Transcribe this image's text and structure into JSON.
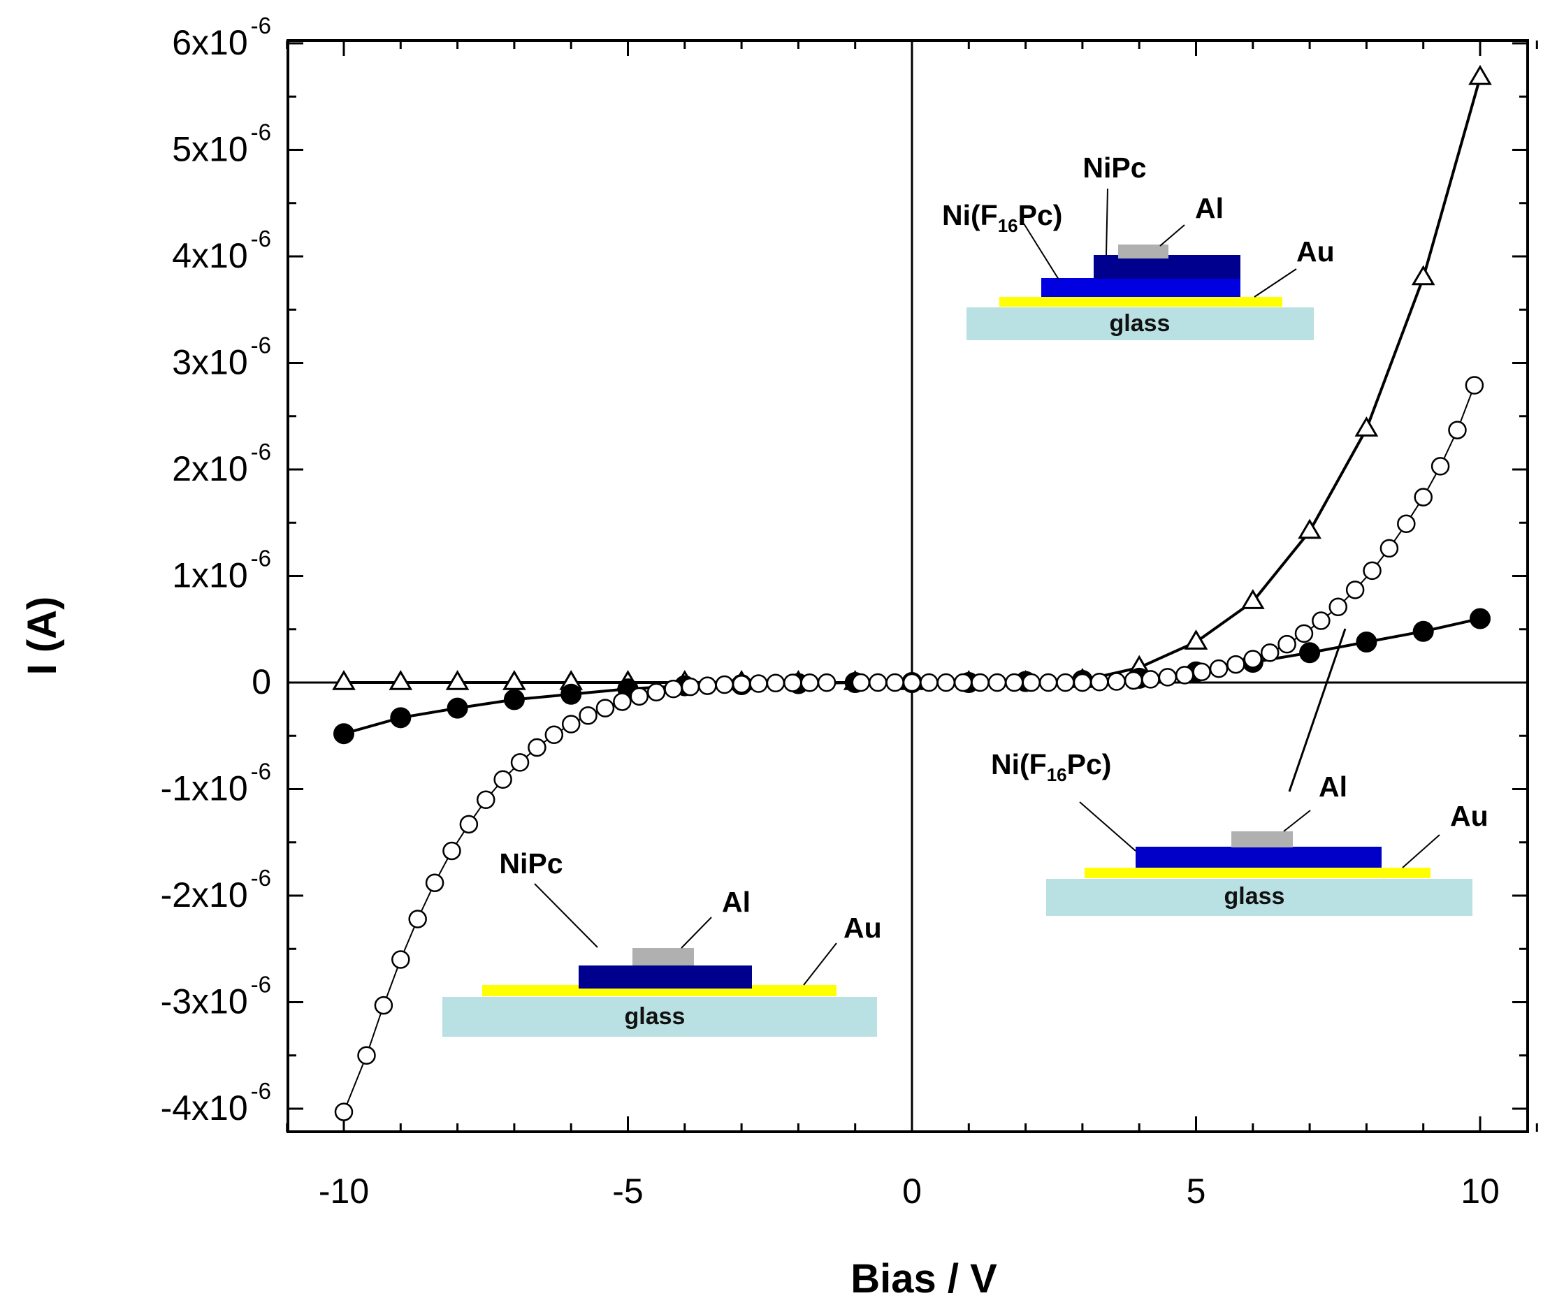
{
  "colors": {
    "glass": "#b9e0e2",
    "gold": "#ffff00",
    "aluminum": "#b0b0b0",
    "nipc": "#00008f",
    "nif16pc": "#0000e0",
    "nif16pc_dark": "#0000c8",
    "axis": "#000000"
  },
  "chart_data": {
    "type": "scatter",
    "title": "",
    "xlabel": "Bias / V",
    "ylabel": "I (A)",
    "xlim": [
      -11,
      11
    ],
    "ylim": [
      -4.2e-06,
      6e-06
    ],
    "x_ticks": [
      {
        "value": -10,
        "label": "-10"
      },
      {
        "value": -5,
        "label": "-5"
      },
      {
        "value": 0,
        "label": "0"
      },
      {
        "value": 5,
        "label": "5"
      },
      {
        "value": 10,
        "label": "10"
      }
    ],
    "y_ticks": [
      {
        "value": 6e-06,
        "mantissa": "6x10",
        "exp": "-6"
      },
      {
        "value": 5e-06,
        "mantissa": "5x10",
        "exp": "-6"
      },
      {
        "value": 4e-06,
        "mantissa": "4x10",
        "exp": "-6"
      },
      {
        "value": 3e-06,
        "mantissa": "3x10",
        "exp": "-6"
      },
      {
        "value": 2e-06,
        "mantissa": "2x10",
        "exp": "-6"
      },
      {
        "value": 1e-06,
        "mantissa": "1x10",
        "exp": "-6"
      },
      {
        "value": 0,
        "mantissa": "0",
        "exp": ""
      },
      {
        "value": -1e-06,
        "mantissa": "-1x10",
        "exp": "-6"
      },
      {
        "value": -2e-06,
        "mantissa": "-2x10",
        "exp": "-6"
      },
      {
        "value": -3e-06,
        "mantissa": "-3x10",
        "exp": "-6"
      },
      {
        "value": -4e-06,
        "mantissa": "-4x10",
        "exp": "-6"
      }
    ],
    "series": [
      {
        "name": "open-triangles",
        "marker": "triangle-open",
        "x": [
          -10,
          -9,
          -8,
          -7,
          -6,
          -5,
          -4,
          -3,
          -2,
          -1,
          0,
          1,
          2,
          3,
          4,
          5,
          6,
          7,
          8,
          9,
          10
        ],
        "y": [
          0,
          0,
          0,
          0,
          0,
          0,
          0,
          0,
          0,
          0,
          0,
          0,
          0,
          2e-08,
          1.4e-07,
          3.8e-07,
          7.6e-07,
          1.42e-06,
          2.38e-06,
          3.8e-06,
          5.68e-06
        ]
      },
      {
        "name": "filled-circles",
        "marker": "circle-filled",
        "x": [
          -10,
          -9,
          -8,
          -7,
          -6,
          -5,
          -4,
          -3,
          -2,
          -1,
          0,
          1,
          2,
          3,
          4,
          5,
          6,
          7,
          8,
          9,
          10
        ],
        "y": [
          -4.8e-07,
          -3.3e-07,
          -2.4e-07,
          -1.6e-07,
          -1.1e-07,
          -6e-08,
          -3e-08,
          -2e-08,
          -1e-08,
          0,
          0,
          0,
          1e-08,
          2e-08,
          4e-08,
          1e-07,
          1.9e-07,
          2.8e-07,
          3.8e-07,
          4.8e-07,
          6e-07
        ]
      },
      {
        "name": "open-circles",
        "marker": "circle-open",
        "x": [
          -10,
          -9.6,
          -9.3,
          -9,
          -8.7,
          -8.4,
          -8.1,
          -7.8,
          -7.5,
          -7.2,
          -6.9,
          -6.6,
          -6.3,
          -6,
          -5.7,
          -5.4,
          -5.1,
          -4.8,
          -4.5,
          -4.2,
          -3.9,
          -3.6,
          -3.3,
          -3.0,
          -2.7,
          -2.4,
          -2.1,
          -1.8,
          -1.5,
          -0.9,
          -0.6,
          -0.3,
          0,
          0.3,
          0.6,
          0.9,
          1.2,
          1.5,
          1.8,
          2.1,
          2.4,
          2.7,
          3.0,
          3.3,
          3.6,
          3.9,
          4.2,
          4.5,
          4.8,
          5.1,
          5.4,
          5.7,
          6.0,
          6.3,
          6.6,
          6.9,
          7.2,
          7.5,
          7.8,
          8.1,
          8.4,
          8.7,
          9.0,
          9.3,
          9.6,
          9.9
        ],
        "y": [
          -4.03e-06,
          -3.5e-06,
          -3.03e-06,
          -2.6e-06,
          -2.22e-06,
          -1.88e-06,
          -1.58e-06,
          -1.33e-06,
          -1.1e-06,
          -9.1e-07,
          -7.5e-07,
          -6.1e-07,
          -4.9e-07,
          -3.9e-07,
          -3.1e-07,
          -2.4e-07,
          -1.8e-07,
          -1.3e-07,
          -9e-08,
          -6e-08,
          -4e-08,
          -3e-08,
          -2e-08,
          -1.5e-08,
          -1e-08,
          -5e-09,
          -3e-09,
          -2e-09,
          -1e-09,
          0,
          0,
          0,
          0,
          0,
          0,
          0,
          0,
          0,
          0,
          0,
          0,
          0,
          0,
          5e-09,
          1e-08,
          2e-08,
          3e-08,
          5e-08,
          7e-08,
          1e-07,
          1.3e-07,
          1.7e-07,
          2.2e-07,
          2.8e-07,
          3.6e-07,
          4.6e-07,
          5.8e-07,
          7.1e-07,
          8.7e-07,
          1.05e-06,
          1.26e-06,
          1.49e-06,
          1.74e-06,
          2.03e-06,
          2.37e-06,
          2.79e-06
        ]
      }
    ],
    "annotations": [
      {
        "inset": "top-right",
        "labels": [
          "NiPc",
          "Ni(F16Pc)",
          "Al",
          "Au",
          "glass"
        ]
      },
      {
        "inset": "bottom-right",
        "labels": [
          "Ni(F16Pc)",
          "Al",
          "Au",
          "glass"
        ]
      },
      {
        "inset": "bottom-left",
        "labels": [
          "NiPc",
          "Al",
          "Au",
          "glass"
        ]
      }
    ]
  },
  "insets": {
    "top": {
      "nipc": "NiPc",
      "nif_prefix": "Ni(F",
      "nif_sub": "16",
      "nif_suffix": "Pc)",
      "al": "Al",
      "au": "Au",
      "glass": "glass"
    },
    "bottom_right": {
      "nif_prefix": "Ni(F",
      "nif_sub": "16",
      "nif_suffix": "Pc)",
      "al": "Al",
      "au": "Au",
      "glass": "glass"
    },
    "bottom_left": {
      "nipc": "NiPc",
      "al": "Al",
      "au": "Au",
      "glass": "glass"
    }
  }
}
